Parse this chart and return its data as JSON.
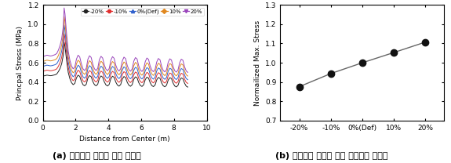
{
  "left_chart": {
    "xlabel": "Distance from Center (m)",
    "ylabel": "Princpal Stress (MPa)",
    "xlim": [
      0,
      10
    ],
    "ylim": [
      0,
      1.2
    ],
    "xticks": [
      0,
      2,
      4,
      6,
      8,
      10
    ],
    "yticks": [
      0,
      0.2,
      0.4,
      0.6,
      0.8,
      1.0,
      1.2
    ],
    "legend_labels": [
      "-20%",
      "-10%",
      "0%(Def)",
      "10%",
      "20%"
    ],
    "legend_colors": [
      "#222222",
      "#e03030",
      "#3060cc",
      "#e08820",
      "#9944bb"
    ],
    "series_scales": [
      0.82,
      0.91,
      1.0,
      1.09,
      1.18
    ],
    "base_x": [
      0.05,
      0.15,
      0.25,
      0.35,
      0.45,
      0.55,
      0.65,
      0.75,
      0.85,
      0.95,
      1.05,
      1.15,
      1.25,
      1.3,
      1.35,
      1.45,
      1.55,
      1.65,
      1.75,
      1.85,
      1.95,
      2.05,
      2.15,
      2.25,
      2.35,
      2.45,
      2.55,
      2.65,
      2.75,
      2.85,
      2.95,
      3.05,
      3.15,
      3.25,
      3.35,
      3.45,
      3.55,
      3.65,
      3.75,
      3.85,
      3.95,
      4.05,
      4.15,
      4.25,
      4.35,
      4.45,
      4.55,
      4.65,
      4.75,
      4.85,
      4.95,
      5.05,
      5.15,
      5.25,
      5.35,
      5.45,
      5.55,
      5.65,
      5.75,
      5.85,
      5.95,
      6.05,
      6.15,
      6.25,
      6.35,
      6.45,
      6.55,
      6.65,
      6.75,
      6.85,
      6.95,
      7.05,
      7.15,
      7.25,
      7.35,
      7.45,
      7.55,
      7.65,
      7.75,
      7.85,
      7.95,
      8.05,
      8.15,
      8.25,
      8.35,
      8.45,
      8.55,
      8.65,
      8.75,
      8.85
    ],
    "base_y": [
      0.565,
      0.57,
      0.575,
      0.572,
      0.568,
      0.57,
      0.575,
      0.58,
      0.59,
      0.62,
      0.66,
      0.72,
      0.83,
      0.99,
      0.94,
      0.76,
      0.61,
      0.53,
      0.48,
      0.455,
      0.47,
      0.54,
      0.575,
      0.56,
      0.5,
      0.455,
      0.44,
      0.46,
      0.54,
      0.57,
      0.555,
      0.495,
      0.455,
      0.44,
      0.46,
      0.535,
      0.565,
      0.55,
      0.49,
      0.452,
      0.438,
      0.458,
      0.53,
      0.562,
      0.548,
      0.488,
      0.45,
      0.436,
      0.456,
      0.525,
      0.558,
      0.545,
      0.485,
      0.448,
      0.434,
      0.454,
      0.522,
      0.554,
      0.542,
      0.482,
      0.445,
      0.432,
      0.452,
      0.518,
      0.55,
      0.538,
      0.48,
      0.443,
      0.43,
      0.45,
      0.515,
      0.546,
      0.535,
      0.477,
      0.44,
      0.428,
      0.448,
      0.512,
      0.543,
      0.533,
      0.475,
      0.438,
      0.426,
      0.446,
      0.508,
      0.54,
      0.53,
      0.473,
      0.436,
      0.424
    ]
  },
  "right_chart": {
    "ylabel": "Normailized Max. Stress",
    "xlim_labels": [
      "-20%",
      "-10%",
      "0%(Def)",
      "10%",
      "20%"
    ],
    "ylim": [
      0.7,
      1.3
    ],
    "yticks": [
      0.7,
      0.8,
      0.9,
      1.0,
      1.1,
      1.2,
      1.3
    ],
    "values": [
      0.876,
      0.944,
      1.0,
      1.053,
      1.107
    ],
    "line_color": "#666666",
    "marker_color": "#111111",
    "marker_size": 6
  },
  "caption_left": "(a) 탄성계수 변화에 따른 주응력",
  "caption_right": "(b) 탄성계수 변화에 따른 최대응력 변화율",
  "caption_fontsize": 8
}
